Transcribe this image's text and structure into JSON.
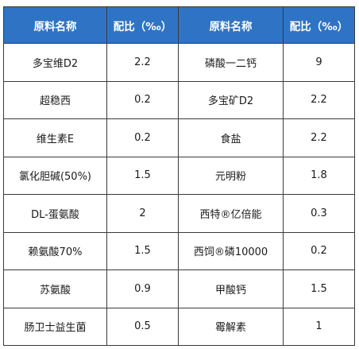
{
  "table": {
    "headers": [
      "原料名称",
      "配比（‰）",
      "原料名称",
      "配比（‰）"
    ],
    "rows": [
      [
        "多宝维D2",
        "2.2",
        "磷酸一二钙",
        "9"
      ],
      [
        "超稳西",
        "0.2",
        "多宝矿D2",
        "2.2"
      ],
      [
        "维生素E",
        "0.2",
        "食盐",
        "2.2"
      ],
      [
        "氯化胆碱(50%)",
        "1.5",
        "元明粉",
        "1.8"
      ],
      [
        "DL-蛋氨酸",
        "2",
        "西特®亿倍能",
        "0.3"
      ],
      [
        "赖氨酸70%",
        "1.5",
        "西饲®磷10000",
        "0.2"
      ],
      [
        "苏氨酸",
        "0.9",
        "甲酸钙",
        "1.5"
      ],
      [
        "肠卫士益生菌",
        "0.5",
        "霉解素",
        "1"
      ]
    ]
  },
  "colors": {
    "header_bg": "#2f74c4",
    "header_text": "#ffffff",
    "border": "#3a3a3a"
  }
}
